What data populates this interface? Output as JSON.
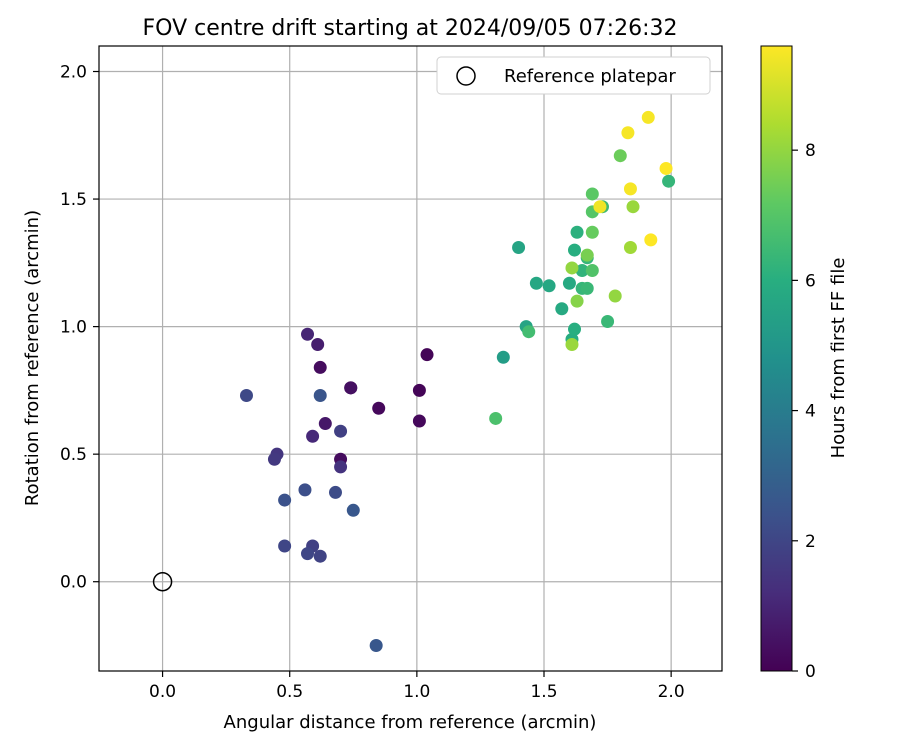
{
  "chart_data": {
    "type": "scatter",
    "title": "FOV centre drift starting at 2024/09/05 07:26:32",
    "xlabel": "Angular distance from reference (arcmin)",
    "ylabel": "Rotation from reference (arcmin)",
    "xlim": [
      -0.25,
      2.2
    ],
    "ylim": [
      -0.35,
      2.1
    ],
    "x_ticks": [
      0.0,
      0.5,
      1.0,
      1.5,
      2.0
    ],
    "x_tick_labels": [
      "0.0",
      "0.5",
      "1.0",
      "1.5",
      "2.0"
    ],
    "y_ticks": [
      0.0,
      0.5,
      1.0,
      1.5,
      2.0
    ],
    "y_tick_labels": [
      "0.0",
      "0.5",
      "1.0",
      "1.5",
      "2.0"
    ],
    "grid": true,
    "legend": {
      "position": "top-right",
      "entries": [
        "Reference platepar"
      ]
    },
    "reference_point": {
      "x": 0.0,
      "y": 0.0,
      "label": "Reference platepar"
    },
    "colorbar": {
      "label": "Hours from first FF file",
      "colormap": "viridis",
      "range": [
        0,
        9.6
      ],
      "ticks": [
        0,
        2,
        4,
        6,
        8
      ],
      "tick_labels": [
        "0",
        "2",
        "4",
        "6",
        "8"
      ]
    },
    "points": [
      {
        "x": 0.74,
        "y": 0.76,
        "c": 0.1
      },
      {
        "x": 1.04,
        "y": 0.89,
        "c": 0.1
      },
      {
        "x": 1.01,
        "y": 0.75,
        "c": 0.1
      },
      {
        "x": 1.01,
        "y": 0.63,
        "c": 0.2
      },
      {
        "x": 0.85,
        "y": 0.68,
        "c": 0.2
      },
      {
        "x": 0.62,
        "y": 0.84,
        "c": 0.3
      },
      {
        "x": 0.7,
        "y": 0.48,
        "c": 0.3
      },
      {
        "x": 0.74,
        "y": 0.76,
        "c": 0.4
      },
      {
        "x": 0.64,
        "y": 0.62,
        "c": 0.6
      },
      {
        "x": 0.61,
        "y": 0.93,
        "c": 0.8
      },
      {
        "x": 0.57,
        "y": 0.97,
        "c": 1.0
      },
      {
        "x": 0.59,
        "y": 0.57,
        "c": 1.1
      },
      {
        "x": 0.7,
        "y": 0.45,
        "c": 1.4
      },
      {
        "x": 0.45,
        "y": 0.5,
        "c": 1.5
      },
      {
        "x": 0.44,
        "y": 0.48,
        "c": 1.6
      },
      {
        "x": 0.7,
        "y": 0.59,
        "c": 1.8
      },
      {
        "x": 0.59,
        "y": 0.14,
        "c": 1.8
      },
      {
        "x": 0.62,
        "y": 0.1,
        "c": 1.9
      },
      {
        "x": 0.57,
        "y": 0.11,
        "c": 2.0
      },
      {
        "x": 0.48,
        "y": 0.14,
        "c": 2.0
      },
      {
        "x": 0.33,
        "y": 0.73,
        "c": 2.1
      },
      {
        "x": 0.68,
        "y": 0.35,
        "c": 2.2
      },
      {
        "x": 0.56,
        "y": 0.36,
        "c": 2.3
      },
      {
        "x": 0.48,
        "y": 0.32,
        "c": 2.4
      },
      {
        "x": 0.62,
        "y": 0.73,
        "c": 2.5
      },
      {
        "x": 0.75,
        "y": 0.28,
        "c": 2.6
      },
      {
        "x": 0.84,
        "y": -0.25,
        "c": 2.6
      },
      {
        "x": 1.34,
        "y": 0.88,
        "c": 5.3
      },
      {
        "x": 1.4,
        "y": 1.31,
        "c": 5.6
      },
      {
        "x": 1.43,
        "y": 1.0,
        "c": 5.6
      },
      {
        "x": 1.47,
        "y": 1.17,
        "c": 5.7
      },
      {
        "x": 1.52,
        "y": 1.16,
        "c": 5.7
      },
      {
        "x": 1.57,
        "y": 1.07,
        "c": 5.8
      },
      {
        "x": 1.6,
        "y": 1.17,
        "c": 5.8
      },
      {
        "x": 1.61,
        "y": 0.95,
        "c": 5.9
      },
      {
        "x": 1.62,
        "y": 0.99,
        "c": 6.0
      },
      {
        "x": 1.62,
        "y": 1.3,
        "c": 6.0
      },
      {
        "x": 1.63,
        "y": 1.37,
        "c": 6.1
      },
      {
        "x": 1.65,
        "y": 1.22,
        "c": 6.2
      },
      {
        "x": 1.65,
        "y": 1.15,
        "c": 6.3
      },
      {
        "x": 1.67,
        "y": 1.15,
        "c": 6.4
      },
      {
        "x": 1.67,
        "y": 1.27,
        "c": 6.3
      },
      {
        "x": 1.73,
        "y": 1.47,
        "c": 6.5
      },
      {
        "x": 1.75,
        "y": 1.02,
        "c": 6.4
      },
      {
        "x": 1.99,
        "y": 1.57,
        "c": 6.3
      },
      {
        "x": 1.44,
        "y": 0.98,
        "c": 6.6
      },
      {
        "x": 1.31,
        "y": 0.64,
        "c": 6.8
      },
      {
        "x": 1.69,
        "y": 1.22,
        "c": 6.9
      },
      {
        "x": 1.69,
        "y": 1.45,
        "c": 7.0
      },
      {
        "x": 1.69,
        "y": 1.52,
        "c": 7.1
      },
      {
        "x": 1.69,
        "y": 1.37,
        "c": 7.3
      },
      {
        "x": 1.8,
        "y": 1.67,
        "c": 7.4
      },
      {
        "x": 1.67,
        "y": 1.28,
        "c": 7.6
      },
      {
        "x": 1.63,
        "y": 1.1,
        "c": 7.8
      },
      {
        "x": 1.61,
        "y": 1.23,
        "c": 8.0
      },
      {
        "x": 1.61,
        "y": 0.93,
        "c": 8.1
      },
      {
        "x": 1.78,
        "y": 1.12,
        "c": 8.0
      },
      {
        "x": 1.85,
        "y": 1.47,
        "c": 8.1
      },
      {
        "x": 1.84,
        "y": 1.31,
        "c": 8.2
      },
      {
        "x": 1.72,
        "y": 1.47,
        "c": 9.4
      },
      {
        "x": 1.84,
        "y": 1.54,
        "c": 9.5
      },
      {
        "x": 1.83,
        "y": 1.76,
        "c": 9.5
      },
      {
        "x": 1.91,
        "y": 1.82,
        "c": 9.5
      },
      {
        "x": 1.98,
        "y": 1.62,
        "c": 9.6
      },
      {
        "x": 1.92,
        "y": 1.34,
        "c": 9.6
      }
    ]
  }
}
